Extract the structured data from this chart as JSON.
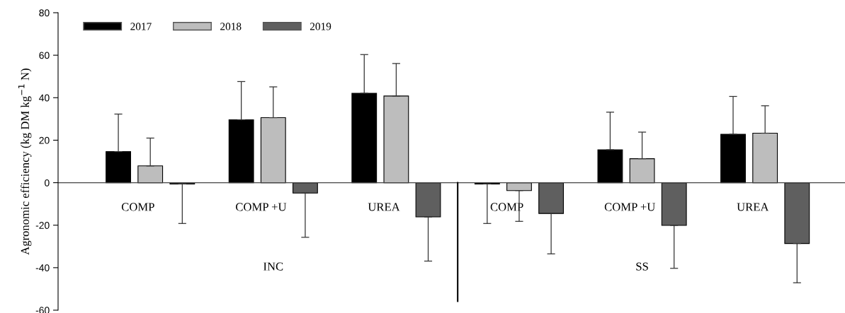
{
  "chart_data": {
    "type": "bar",
    "ylabel": "Agronomic efficiency (kg DM kg$^{−1}$ N)",
    "categories": [
      "COMP",
      "COMP +U",
      "UREA",
      "COMP",
      "COMP +U",
      "UREA"
    ],
    "ylim": [
      -60,
      80
    ],
    "yticks": [
      -60,
      -40,
      -20,
      0,
      20,
      40,
      60,
      80
    ],
    "legend": "top left",
    "grid": false,
    "annotations": [
      "INC",
      "SS"
    ],
    "series": [
      {
        "name": "2017",
        "color": "#000000",
        "values": [
          14.6,
          29.6,
          42.1,
          -0.6,
          15.5,
          22.8
        ],
        "errors": [
          [
            14.6,
            32.3
          ],
          [
            29.6,
            47.6
          ],
          [
            42.1,
            60.3
          ],
          [
            -19.2,
            -0.6
          ],
          [
            15.5,
            33.2
          ],
          [
            22.8,
            40.6
          ]
        ]
      },
      {
        "name": "2018",
        "color": "#bdbdbd",
        "values": [
          7.9,
          30.6,
          40.8,
          -3.7,
          11.3,
          23.3
        ],
        "errors": [
          [
            7.9,
            21.0
          ],
          [
            30.6,
            45.1
          ],
          [
            40.8,
            56.1
          ],
          [
            -18.2,
            -3.7
          ],
          [
            11.3,
            23.8
          ],
          [
            23.3,
            36.2
          ]
        ]
      },
      {
        "name": "2019",
        "color": "#5f5f5f",
        "values": [
          -0.6,
          -4.9,
          -16.1,
          -14.5,
          -20.1,
          -28.6
        ],
        "errors": [
          [
            -19.2,
            -0.6
          ],
          [
            -25.7,
            -4.9
          ],
          [
            -36.9,
            -16.1
          ],
          [
            -33.5,
            -14.5
          ],
          [
            -40.3,
            -20.1
          ],
          [
            -47.1,
            -28.6
          ]
        ]
      }
    ]
  }
}
